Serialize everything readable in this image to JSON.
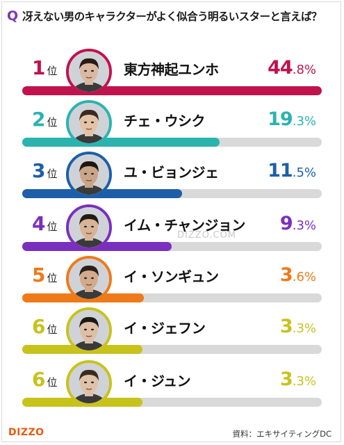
{
  "question": {
    "mark": "Q",
    "text": "冴えない男のキャラクターがよく似合う明るいスターと言えば？"
  },
  "colors": {
    "question_mark": "#7a39b8",
    "bar_track": "#d9d9d9",
    "brand": "#e85a10"
  },
  "rank_unit": "位",
  "watermark": "DIZZO.COM",
  "footer": {
    "brand": "DIZZO",
    "source": "資料：エキサイティングDC"
  },
  "chart_data": {
    "type": "bar",
    "title": "冴えない男のキャラクターがよく似合う明るいスターと言えば？",
    "unit": "%",
    "items": [
      {
        "rank": "1",
        "name": "東方神起ユンホ",
        "value": 44.8,
        "value_int": "44",
        "value_dec": ".8%",
        "color": "#c0134d"
      },
      {
        "rank": "2",
        "name": "チェ・ウシク",
        "value": 19.3,
        "value_int": "19",
        "value_dec": ".3%",
        "color": "#2bb3b0"
      },
      {
        "rank": "3",
        "name": "ユ・ビョンジェ",
        "value": 11.5,
        "value_int": "11",
        "value_dec": ".5%",
        "color": "#1c5fa8"
      },
      {
        "rank": "4",
        "name": "イム・チャンジョン",
        "value": 9.3,
        "value_int": "9",
        "value_dec": ".3%",
        "color": "#7a2fbf"
      },
      {
        "rank": "5",
        "name": "イ・ソンギュン",
        "value": 3.6,
        "value_int": "3",
        "value_dec": ".6%",
        "color": "#ef7a1a"
      },
      {
        "rank": "6",
        "name": "イ・ジェフン",
        "value": 3.3,
        "value_int": "3",
        "value_dec": ".3%",
        "color": "#c8c21d"
      },
      {
        "rank": "6",
        "name": "イ・ジュン",
        "value": 3.3,
        "value_int": "3",
        "value_dec": ".3%",
        "color": "#c8c21d"
      }
    ]
  }
}
